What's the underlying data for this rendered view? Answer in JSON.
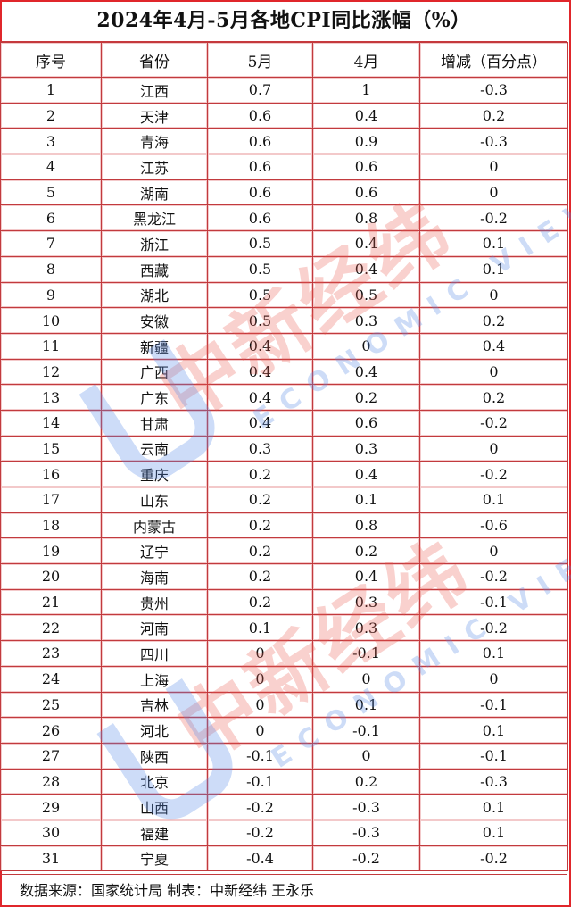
{
  "title": "2024年4月-5月各地CPI同比涨幅（%）",
  "watermark": {
    "cn": "中新经纬",
    "en": "ECONOMIC VIEW"
  },
  "footer": "数据来源：国家统计局 制表：中新经纬 王永乐",
  "colors": {
    "border": "#e0262b",
    "grid": "#c23a3e"
  },
  "chart_data": {
    "type": "table",
    "title": "2024年4月-5月各地CPI同比涨幅（%）",
    "columns": [
      "序号",
      "省份",
      "5月",
      "4月",
      "增减（百分点）"
    ],
    "rows": [
      [
        "1",
        "江西",
        "0.7",
        "1",
        "-0.3"
      ],
      [
        "2",
        "天津",
        "0.6",
        "0.4",
        "0.2"
      ],
      [
        "3",
        "青海",
        "0.6",
        "0.9",
        "-0.3"
      ],
      [
        "4",
        "江苏",
        "0.6",
        "0.6",
        "0"
      ],
      [
        "5",
        "湖南",
        "0.6",
        "0.6",
        "0"
      ],
      [
        "6",
        "黑龙江",
        "0.6",
        "0.8",
        "-0.2"
      ],
      [
        "7",
        "浙江",
        "0.5",
        "0.4",
        "0.1"
      ],
      [
        "8",
        "西藏",
        "0.5",
        "0.4",
        "0.1"
      ],
      [
        "9",
        "湖北",
        "0.5",
        "0.5",
        "0"
      ],
      [
        "10",
        "安徽",
        "0.5",
        "0.3",
        "0.2"
      ],
      [
        "11",
        "新疆",
        "0.4",
        "0",
        "0.4"
      ],
      [
        "12",
        "广西",
        "0.4",
        "0.4",
        "0"
      ],
      [
        "13",
        "广东",
        "0.4",
        "0.2",
        "0.2"
      ],
      [
        "14",
        "甘肃",
        "0.4",
        "0.6",
        "-0.2"
      ],
      [
        "15",
        "云南",
        "0.3",
        "0.3",
        "0"
      ],
      [
        "16",
        "重庆",
        "0.2",
        "0.4",
        "-0.2"
      ],
      [
        "17",
        "山东",
        "0.2",
        "0.1",
        "0.1"
      ],
      [
        "18",
        "内蒙古",
        "0.2",
        "0.8",
        "-0.6"
      ],
      [
        "19",
        "辽宁",
        "0.2",
        "0.2",
        "0"
      ],
      [
        "20",
        "海南",
        "0.2",
        "0.4",
        "-0.2"
      ],
      [
        "21",
        "贵州",
        "0.2",
        "0.3",
        "-0.1"
      ],
      [
        "22",
        "河南",
        "0.1",
        "0.3",
        "-0.2"
      ],
      [
        "23",
        "四川",
        "0",
        "-0.1",
        "0.1"
      ],
      [
        "24",
        "上海",
        "0",
        "0",
        "0"
      ],
      [
        "25",
        "吉林",
        "0",
        "0.1",
        "-0.1"
      ],
      [
        "26",
        "河北",
        "0",
        "-0.1",
        "0.1"
      ],
      [
        "27",
        "陕西",
        "-0.1",
        "0",
        "-0.1"
      ],
      [
        "28",
        "北京",
        "-0.1",
        "0.2",
        "-0.3"
      ],
      [
        "29",
        "山西",
        "-0.2",
        "-0.3",
        "0.1"
      ],
      [
        "30",
        "福建",
        "-0.2",
        "-0.3",
        "0.1"
      ],
      [
        "31",
        "宁夏",
        "-0.4",
        "-0.2",
        "-0.2"
      ]
    ]
  }
}
